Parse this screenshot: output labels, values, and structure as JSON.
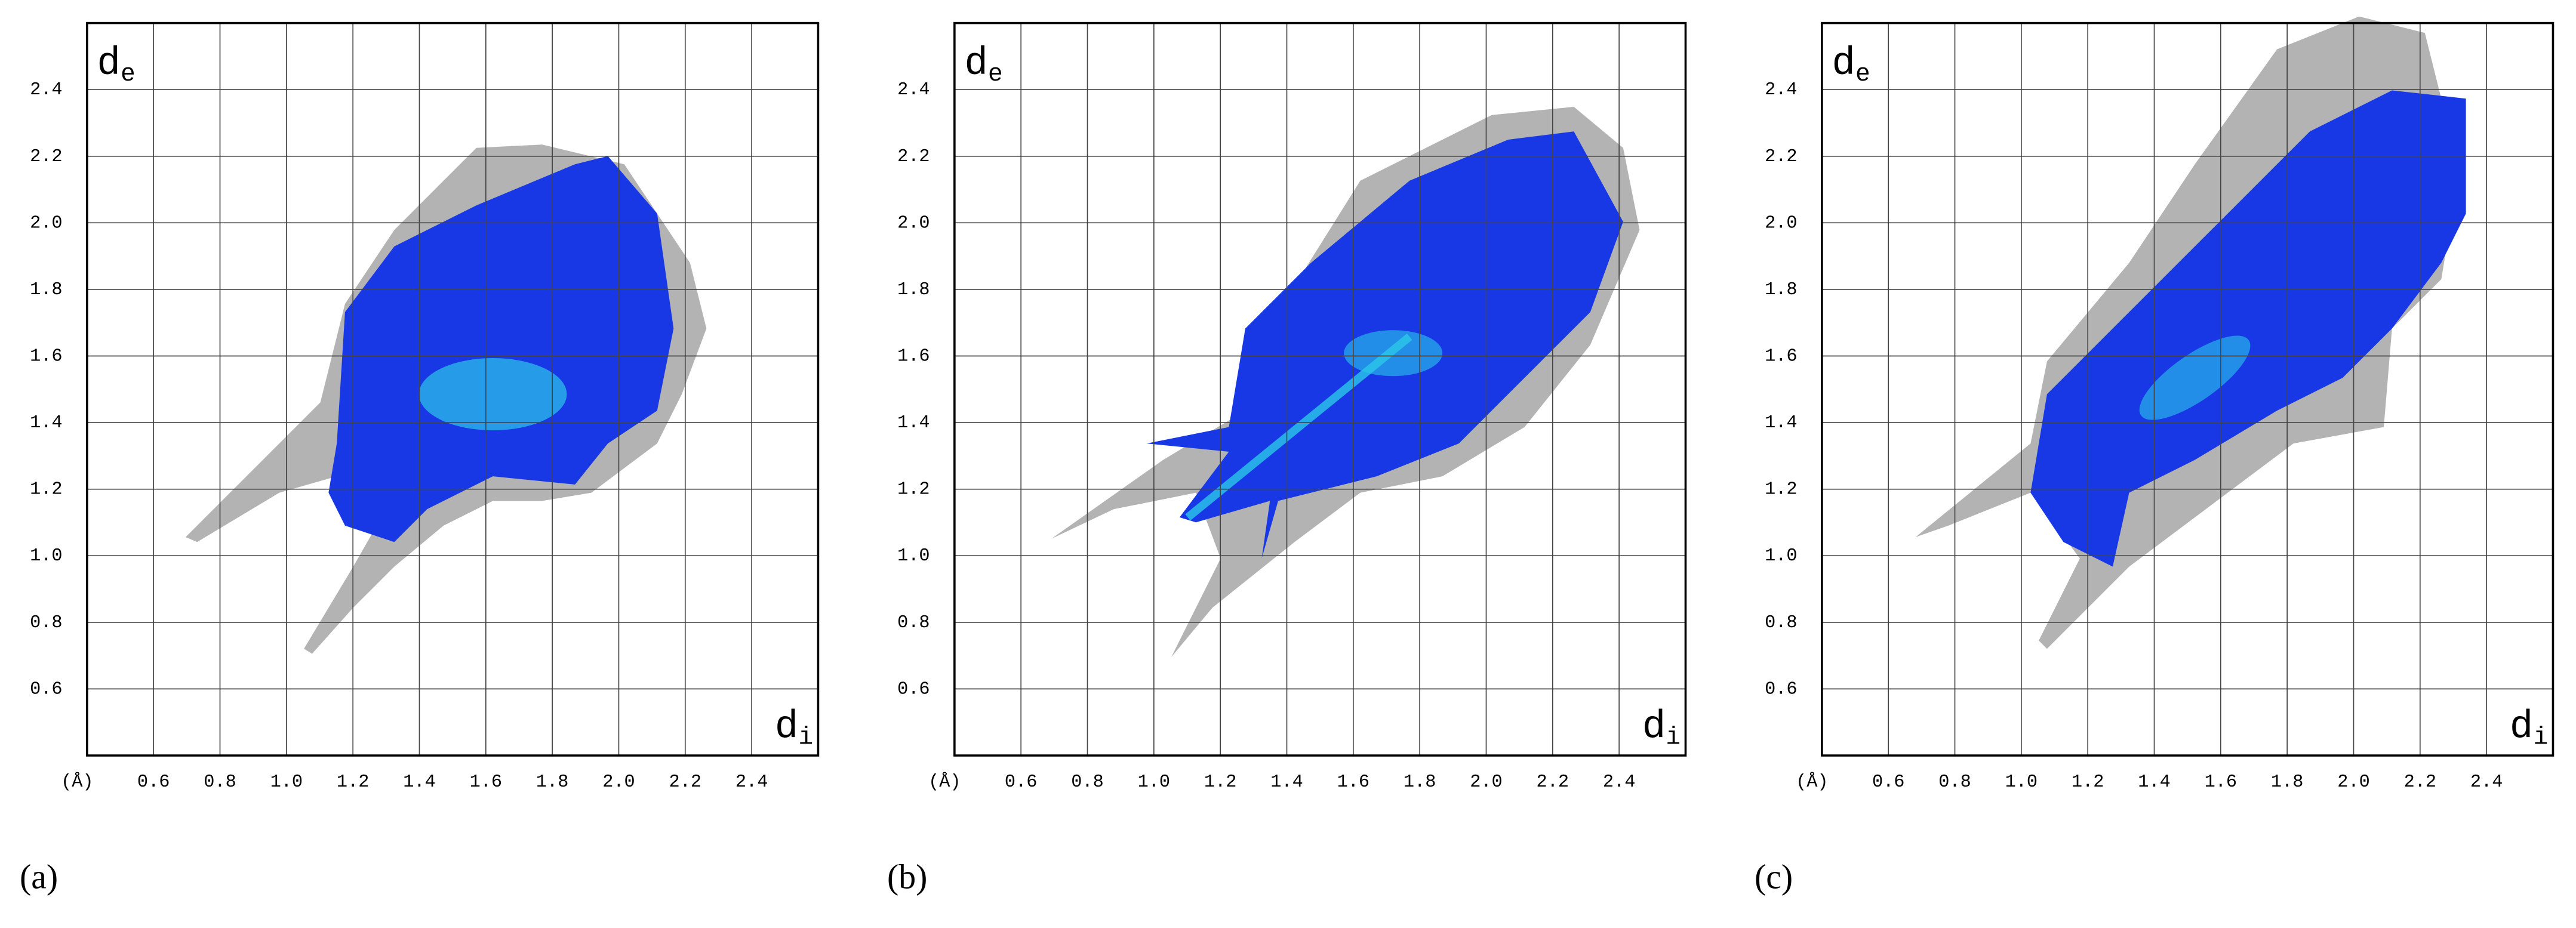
{
  "chart_data": [
    {
      "type": "fingerprint",
      "panel_label": "(a)",
      "y_label": "d",
      "y_label_sub": "e",
      "x_label": "d",
      "x_label_sub": "i",
      "unit": "(Å)",
      "xlim": [
        0.4,
        2.6
      ],
      "ylim": [
        0.4,
        2.6
      ],
      "xticks": [
        0.6,
        0.8,
        {
          "value": 1,
          "label": "1.0"
        },
        1.2,
        1.4,
        1.6,
        1.8,
        {
          "value": 2,
          "label": "2.0"
        },
        2.2,
        2.4
      ],
      "yticks": [
        0.6,
        0.8,
        {
          "value": 1,
          "label": "1.0"
        },
        1.2,
        1.4,
        1.6,
        1.8,
        {
          "value": 2,
          "label": "2.0"
        },
        2.2,
        2.4
      ],
      "grid": true,
      "colors": {
        "outside": "#b3b3b3",
        "inside": "#1838e6",
        "dense": "#2cc8e8"
      }
    },
    {
      "type": "fingerprint",
      "panel_label": "(b)",
      "y_label": "d",
      "y_label_sub": "e",
      "x_label": "d",
      "x_label_sub": "i",
      "unit": "(Å)",
      "xlim": [
        0.4,
        2.6
      ],
      "ylim": [
        0.4,
        2.6
      ],
      "xticks": [
        0.6,
        0.8,
        {
          "value": 1,
          "label": "1.0"
        },
        1.2,
        1.4,
        1.6,
        1.8,
        {
          "value": 2,
          "label": "2.0"
        },
        2.2,
        2.4
      ],
      "yticks": [
        0.6,
        0.8,
        {
          "value": 1,
          "label": "1.0"
        },
        1.2,
        1.4,
        1.6,
        1.8,
        {
          "value": 2,
          "label": "2.0"
        },
        2.2,
        2.4
      ],
      "grid": true,
      "colors": {
        "outside": "#b3b3b3",
        "inside": "#1838e6",
        "dense": "#2cc8e8"
      }
    },
    {
      "type": "fingerprint",
      "panel_label": "(c)",
      "y_label": "d",
      "y_label_sub": "e",
      "x_label": "d",
      "x_label_sub": "i",
      "unit": "(Å)",
      "xlim": [
        0.4,
        2.6
      ],
      "ylim": [
        0.4,
        2.6
      ],
      "xticks": [
        0.6,
        0.8,
        {
          "value": 1,
          "label": "1.0"
        },
        1.2,
        1.4,
        1.6,
        1.8,
        {
          "value": 2,
          "label": "2.0"
        },
        2.2,
        2.4
      ],
      "yticks": [
        0.6,
        0.8,
        {
          "value": 1,
          "label": "1.0"
        },
        1.2,
        1.4,
        1.6,
        1.8,
        {
          "value": 2,
          "label": "2.0"
        },
        2.2,
        2.4
      ],
      "grid": true,
      "colors": {
        "outside": "#b3b3b3",
        "inside": "#1838e6",
        "dense": "#2cc8e8"
      }
    }
  ]
}
